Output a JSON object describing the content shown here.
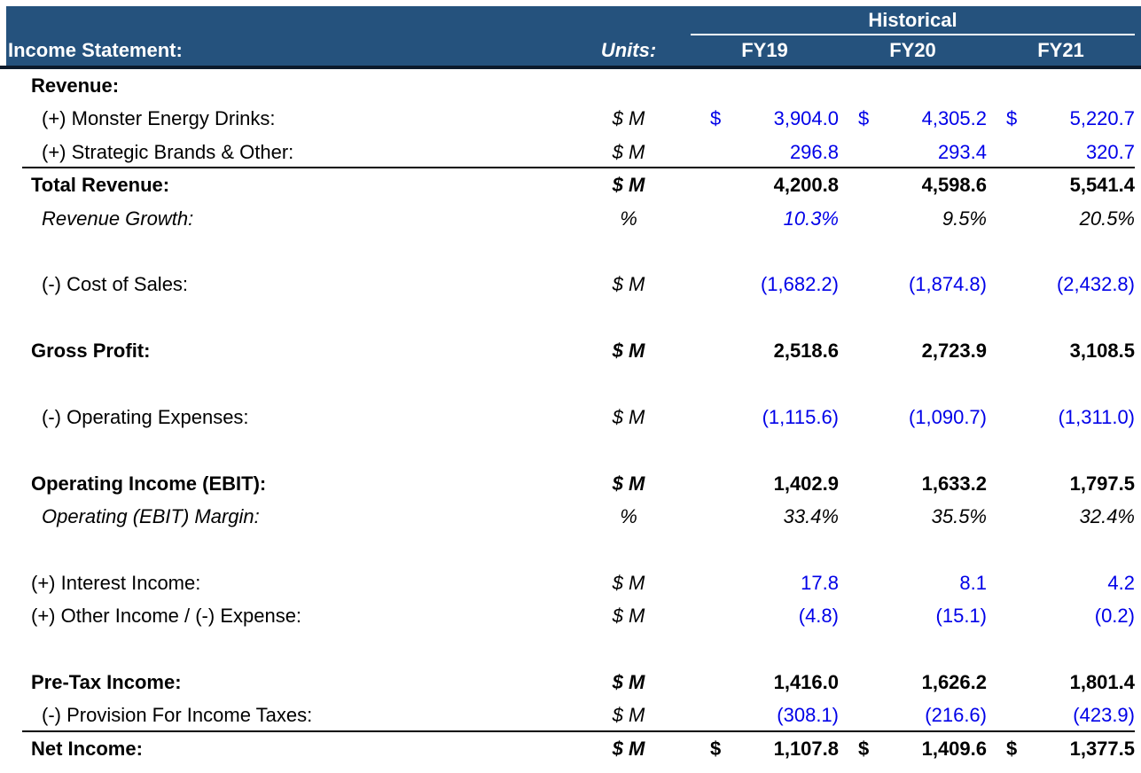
{
  "header": {
    "title": "Income Statement:",
    "units_label": "Units:",
    "group_label": "Historical",
    "columns": [
      "FY19",
      "FY20",
      "FY21"
    ]
  },
  "symbols": {
    "dollar": "$"
  },
  "colors": {
    "header_bg": "#25527D",
    "header_text": "#FFFFFF",
    "input_blue": "#0000E8",
    "formula_black": "#000000"
  },
  "rows": [
    {
      "label": "Revenue:",
      "units": "",
      "values": [
        "",
        "",
        ""
      ]
    },
    {
      "label": "(+) Monster Energy Drinks:",
      "units": "$ M",
      "values": [
        "3,904.0",
        "4,305.2",
        "5,220.7"
      ]
    },
    {
      "label": "(+) Strategic Brands & Other:",
      "units": "$ M",
      "values": [
        "296.8",
        "293.4",
        "320.7"
      ]
    },
    {
      "label": "Total Revenue:",
      "units": "$ M",
      "values": [
        "4,200.8",
        "4,598.6",
        "5,541.4"
      ]
    },
    {
      "label": "Revenue Growth:",
      "units": "%",
      "values": [
        "10.3%",
        "9.5%",
        "20.5%"
      ]
    },
    {
      "label": "(-) Cost of Sales:",
      "units": "$ M",
      "values": [
        "(1,682.2)",
        "(1,874.8)",
        "(2,432.8)"
      ]
    },
    {
      "label": "Gross Profit:",
      "units": "$ M",
      "values": [
        "2,518.6",
        "2,723.9",
        "3,108.5"
      ]
    },
    {
      "label": "(-) Operating Expenses:",
      "units": "$ M",
      "values": [
        "(1,115.6)",
        "(1,090.7)",
        "(1,311.0)"
      ]
    },
    {
      "label": "Operating Income (EBIT):",
      "units": "$ M",
      "values": [
        "1,402.9",
        "1,633.2",
        "1,797.5"
      ]
    },
    {
      "label": "Operating (EBIT) Margin:",
      "units": "%",
      "values": [
        "33.4%",
        "35.5%",
        "32.4%"
      ]
    },
    {
      "label": "(+) Interest Income:",
      "units": "$ M",
      "values": [
        "17.8",
        "8.1",
        "4.2"
      ]
    },
    {
      "label": "(+) Other Income / (-) Expense:",
      "units": "$ M",
      "values": [
        "(4.8)",
        "(15.1)",
        "(0.2)"
      ]
    },
    {
      "label": "Pre-Tax Income:",
      "units": "$ M",
      "values": [
        "1,416.0",
        "1,626.2",
        "1,801.4"
      ]
    },
    {
      "label": "(-) Provision For Income Taxes:",
      "units": "$ M",
      "values": [
        "(308.1)",
        "(216.6)",
        "(423.9)"
      ]
    },
    {
      "label": "Net Income:",
      "units": "$ M",
      "values": [
        "1,107.8",
        "1,409.6",
        "1,377.5"
      ]
    }
  ]
}
